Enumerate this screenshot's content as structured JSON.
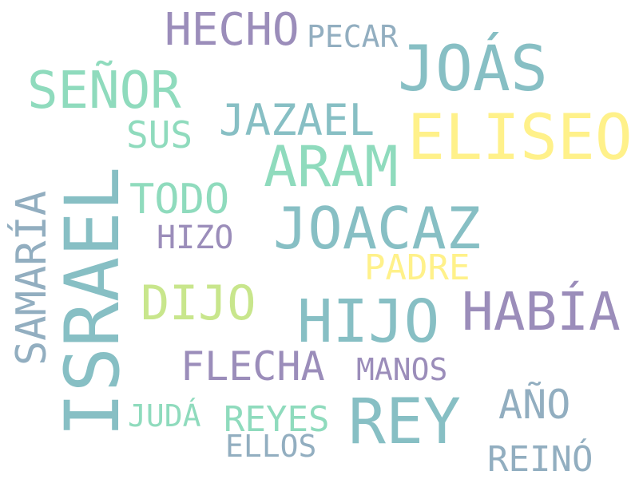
{
  "words": {
    "israel": "ISRAEL",
    "samaria": "SAMARÍA",
    "hecho": "HECHO",
    "pecar": "PECAR",
    "joas": "JOÁS",
    "senor": "SEÑOR",
    "jazael": "JAZAEL",
    "sus": "SUS",
    "eliseo": "ELISEO",
    "aram": "ARAM",
    "todo": "TODO",
    "joacaz": "JOACAZ",
    "hizo": "HIZO",
    "padre": "PADRE",
    "dijo": "DIJO",
    "hijo": "HIJO",
    "habia": "HABÍA",
    "flecha": "FLECHA",
    "manos": "MANOS",
    "ano": "AÑO",
    "juda": "JUDÁ",
    "reyes": "REYES",
    "rey": "REY",
    "ellos": "ELLOS",
    "reino": "REINÓ"
  },
  "colors": {
    "teal_blue": "#87bfc4",
    "mint": "#8fdbbd",
    "purple": "#9b8dba",
    "yellow": "#fff18a",
    "light_green": "#c8e68c",
    "grey_blue": "#92aec0"
  }
}
